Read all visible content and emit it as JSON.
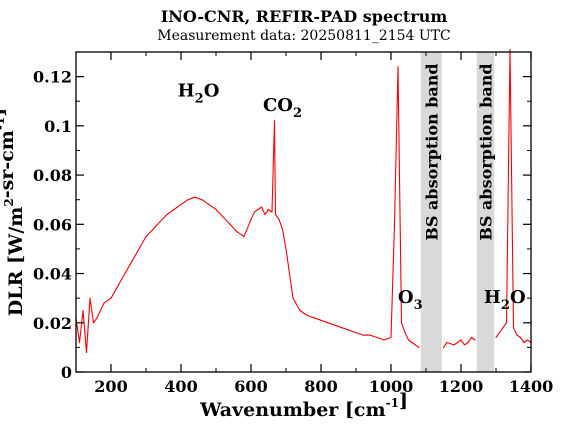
{
  "chart_data": {
    "type": "line",
    "title": "INO-CNR, REFIR-PAD spectrum",
    "subtitle": "Measurement data: 20250811_2154 UTC",
    "xlabel": "Wavenumber [cm-1]",
    "ylabel": "DLR [W/m2-sr-cm-1]",
    "xlim": [
      100,
      1400
    ],
    "ylim": [
      0,
      0.13
    ],
    "x_ticks": [
      200,
      400,
      600,
      800,
      1000,
      1200,
      1400
    ],
    "y_ticks": [
      0,
      0.02,
      0.04,
      0.06,
      0.08,
      0.1,
      0.12
    ],
    "x_tick_labels": [
      "200",
      "400",
      "600",
      "800",
      "1000",
      "1200",
      "1400"
    ],
    "y_tick_labels": [
      "0",
      "0.02",
      "0.04",
      "0.06",
      "0.08",
      "0.1",
      "0.12"
    ],
    "grid": false,
    "line_color": "#ff0000",
    "band_color": "#d9d9d9",
    "series": [
      {
        "x": [
          100,
          110,
          120,
          130,
          140,
          150,
          160,
          170,
          180,
          200,
          220,
          240,
          260,
          280,
          300,
          320,
          340,
          360,
          380,
          400,
          420,
          440,
          460,
          480,
          500,
          520,
          540,
          560,
          580,
          600,
          610,
          620,
          630,
          640,
          650,
          660,
          667,
          670,
          680,
          690,
          700,
          710,
          720,
          740,
          760,
          780,
          800,
          820,
          840,
          860,
          880,
          900,
          920,
          940,
          960,
          980,
          1000,
          1010,
          1020,
          1030,
          1040,
          1050,
          1060,
          1070,
          1080,
          1100,
          1140,
          1150,
          1160,
          1180,
          1200,
          1210,
          1220,
          1230,
          1240,
          1250,
          1290,
          1300,
          1310,
          1320,
          1330,
          1340,
          1350,
          1360,
          1370,
          1380,
          1390,
          1400
        ],
        "y": [
          0.022,
          0.012,
          0.025,
          0.008,
          0.03,
          0.02,
          0.022,
          0.025,
          0.028,
          0.03,
          0.035,
          0.04,
          0.045,
          0.05,
          0.055,
          0.058,
          0.061,
          0.064,
          0.066,
          0.068,
          0.07,
          0.071,
          0.07,
          0.068,
          0.066,
          0.063,
          0.06,
          0.057,
          0.055,
          0.062,
          0.065,
          0.066,
          0.067,
          0.064,
          0.066,
          0.065,
          0.102,
          0.064,
          0.062,
          0.058,
          0.05,
          0.04,
          0.03,
          0.025,
          0.023,
          0.022,
          0.021,
          0.02,
          0.019,
          0.018,
          0.017,
          0.016,
          0.015,
          0.015,
          0.014,
          0.013,
          0.014,
          0.06,
          0.124,
          0.02,
          0.016,
          0.013,
          0.012,
          0.011,
          0.01,
          null,
          null,
          0.01,
          0.012,
          0.011,
          0.013,
          0.011,
          0.012,
          0.014,
          0.013,
          null,
          null,
          0.014,
          0.016,
          0.018,
          0.02,
          0.131,
          0.018,
          0.015,
          0.014,
          0.012,
          0.013,
          0.012
        ]
      }
    ],
    "shaded_bands": [
      {
        "x_range": [
          1085,
          1145
        ],
        "label": "BS absorption band"
      },
      {
        "x_range": [
          1245,
          1295
        ],
        "label": "BS absorption band"
      }
    ],
    "annotations": [
      {
        "text": "H2O",
        "x": 450,
        "y": 0.112
      },
      {
        "text": "CO2",
        "x": 690,
        "y": 0.106
      },
      {
        "text": "O3",
        "x": 1055,
        "y": 0.028
      },
      {
        "text": "H2O",
        "x": 1325,
        "y": 0.028
      }
    ]
  }
}
